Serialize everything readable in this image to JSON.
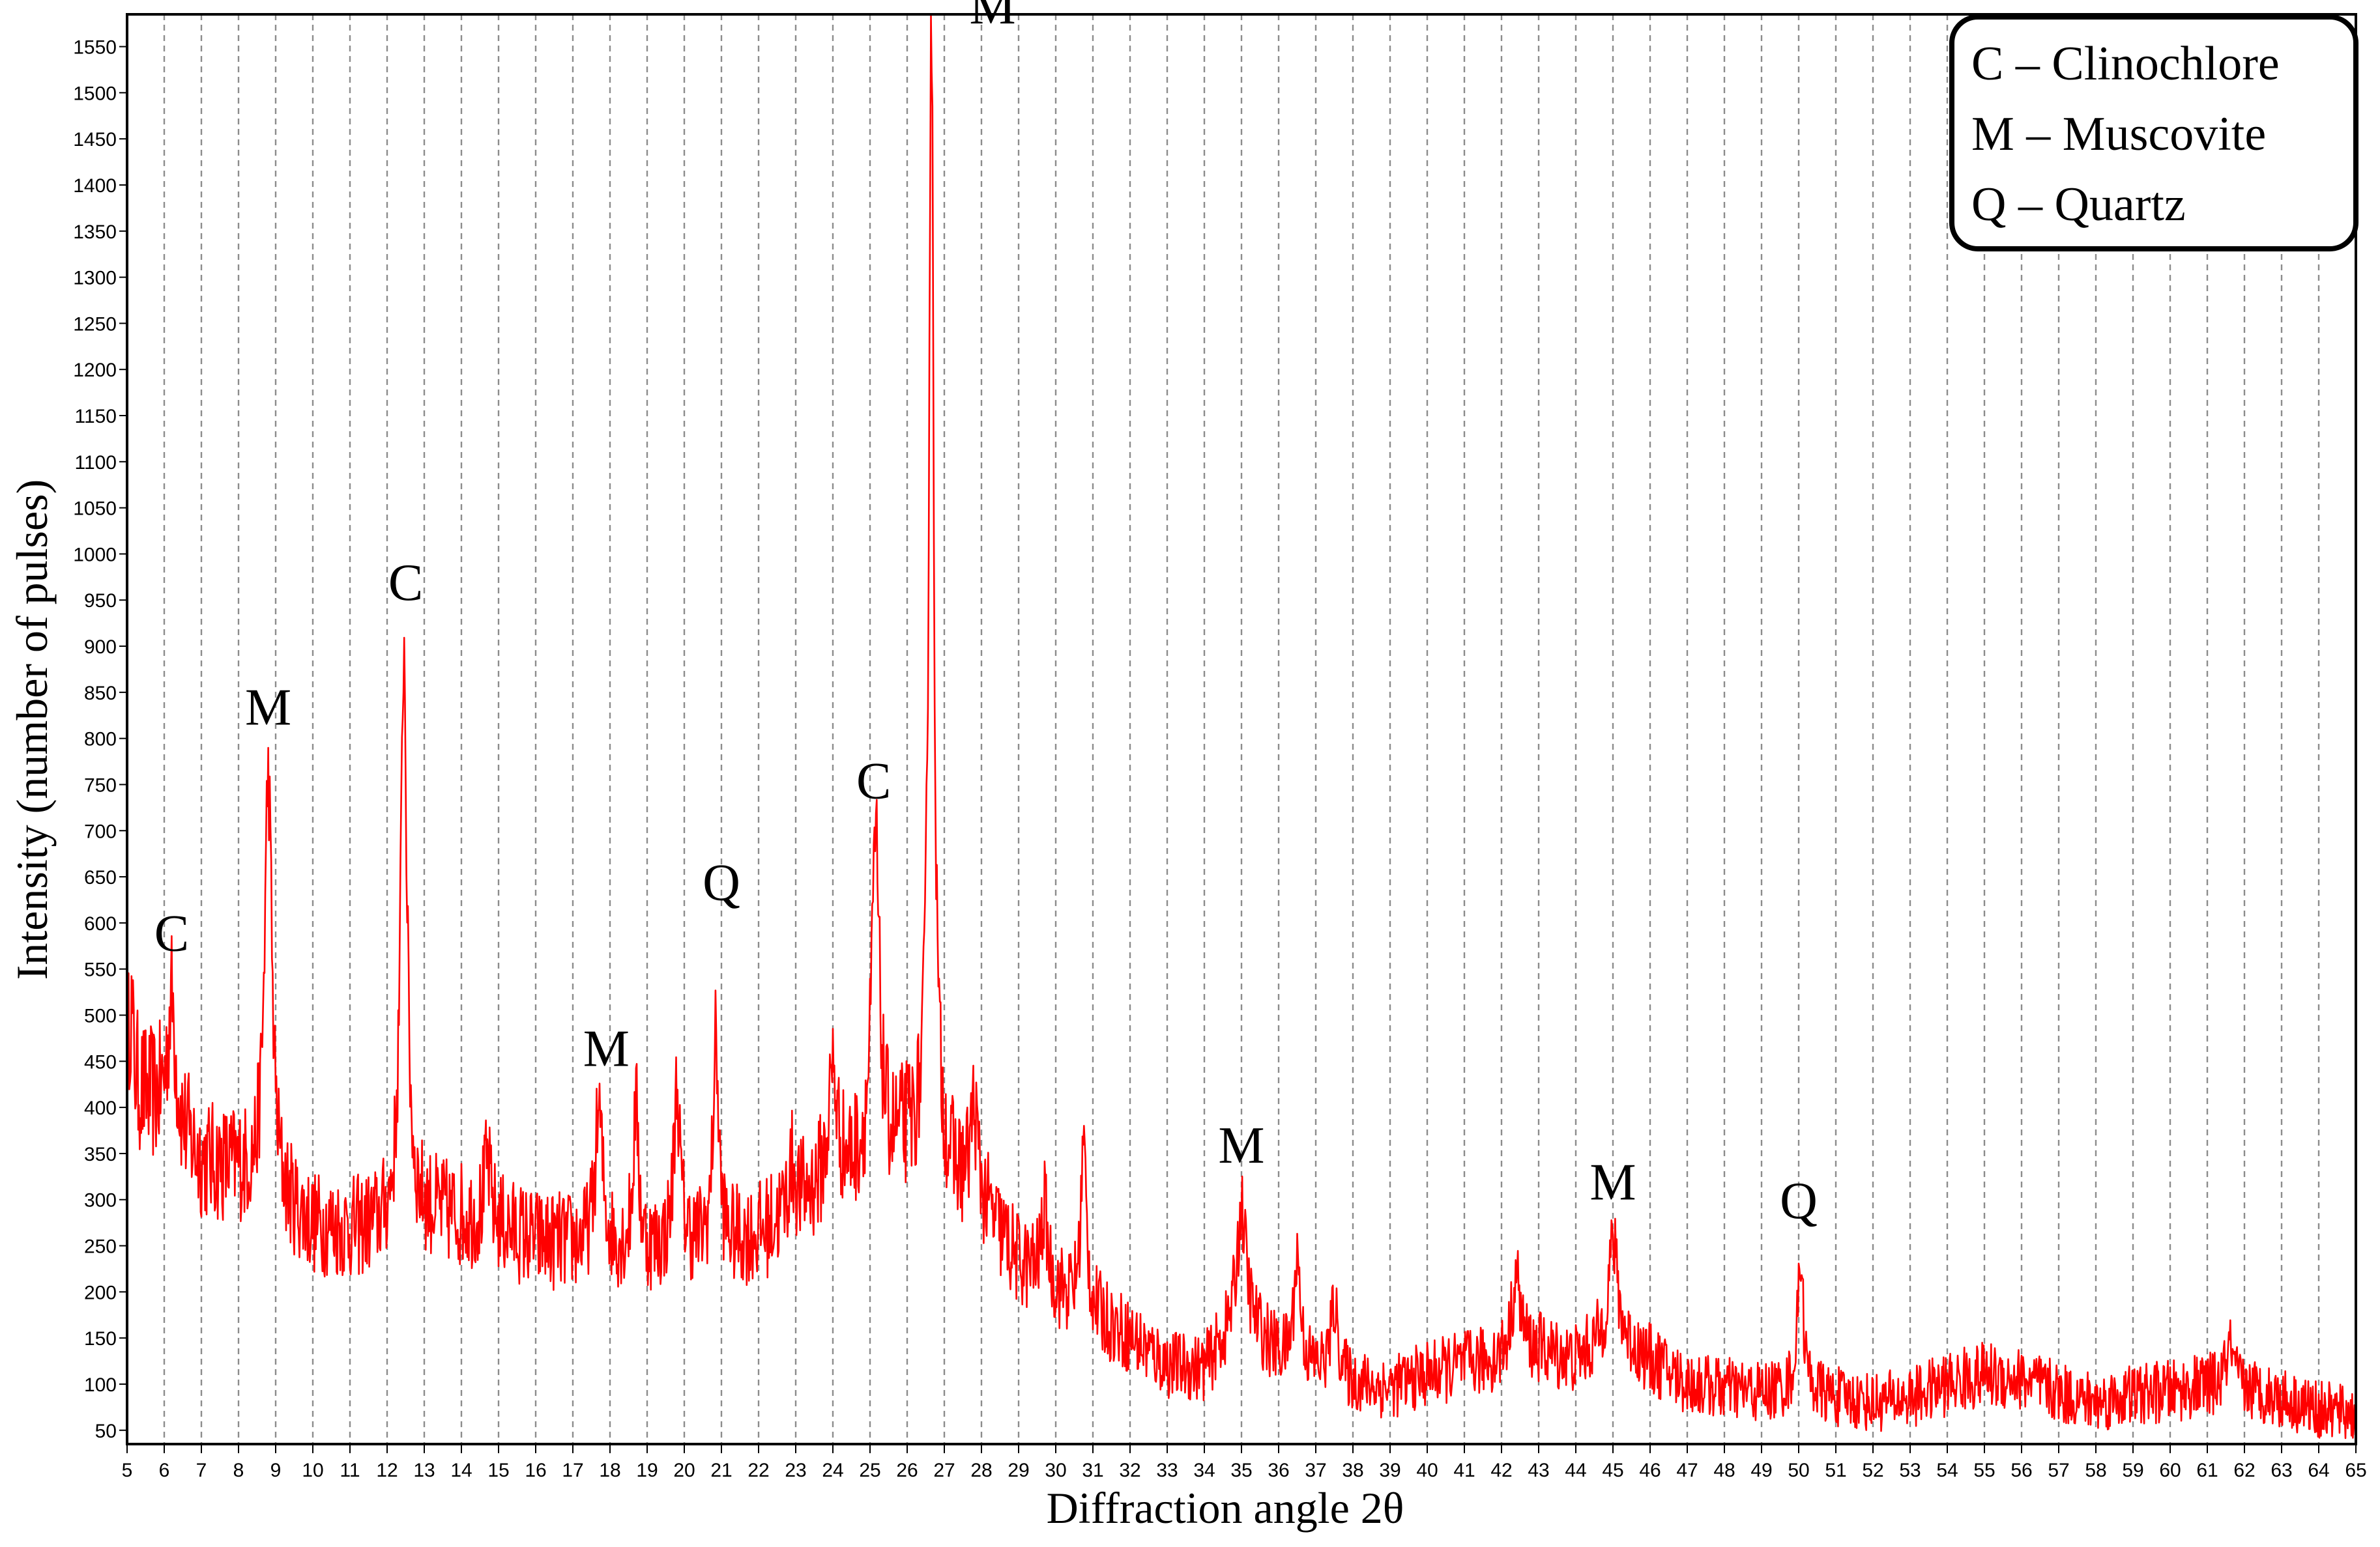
{
  "chart_data": {
    "type": "line",
    "xlabel": "Diffraction angle 2θ",
    "ylabel": "Intensity (number of pulses)",
    "xlim": [
      5,
      65
    ],
    "ylim": [
      35,
      1585
    ],
    "x_ticks": [
      5,
      6,
      7,
      8,
      9,
      10,
      11,
      12,
      13,
      14,
      15,
      16,
      17,
      18,
      19,
      20,
      21,
      22,
      23,
      24,
      25,
      26,
      27,
      28,
      29,
      30,
      31,
      32,
      33,
      34,
      35,
      36,
      37,
      38,
      39,
      40,
      41,
      42,
      43,
      44,
      45,
      46,
      47,
      48,
      49,
      50,
      51,
      52,
      53,
      54,
      55,
      56,
      57,
      58,
      59,
      60,
      61,
      62,
      63,
      64,
      65
    ],
    "y_ticks": [
      50,
      100,
      150,
      200,
      250,
      300,
      350,
      400,
      450,
      500,
      550,
      600,
      650,
      700,
      750,
      800,
      850,
      900,
      950,
      1000,
      1050,
      1100,
      1150,
      1200,
      1250,
      1300,
      1350,
      1400,
      1450,
      1500,
      1550
    ],
    "grid": "vertical dashed",
    "line_color": "#ff0000",
    "legend": {
      "position": "top-right",
      "entries": [
        "C – Clinochlore",
        "M – Muscovite",
        "Q – Quartz"
      ]
    },
    "annotations": [
      {
        "text": "C",
        "x": 6.2,
        "y": 570
      },
      {
        "text": "M",
        "x": 8.8,
        "y": 815
      },
      {
        "text": "C",
        "x": 12.5,
        "y": 950
      },
      {
        "text": "M",
        "x": 17.9,
        "y": 445
      },
      {
        "text": "Q",
        "x": 21.0,
        "y": 625
      },
      {
        "text": "C",
        "x": 25.1,
        "y": 735
      },
      {
        "text": "M",
        "x": 28.3,
        "y": 1575
      },
      {
        "text": "M",
        "x": 35.0,
        "y": 340
      },
      {
        "text": "M",
        "x": 45.0,
        "y": 300
      },
      {
        "text": "Q",
        "x": 50.0,
        "y": 280
      }
    ],
    "baseline": [
      [
        5,
        420
      ],
      [
        6,
        400
      ],
      [
        7,
        340
      ],
      [
        8,
        330
      ],
      [
        9,
        300
      ],
      [
        10,
        270
      ],
      [
        11,
        265
      ],
      [
        12,
        270
      ],
      [
        13,
        285
      ],
      [
        14,
        280
      ],
      [
        15,
        270
      ],
      [
        16,
        255
      ],
      [
        17,
        250
      ],
      [
        18,
        245
      ],
      [
        19,
        240
      ],
      [
        20,
        250
      ],
      [
        21,
        250
      ],
      [
        22,
        260
      ],
      [
        23,
        290
      ],
      [
        24,
        325
      ],
      [
        25,
        340
      ],
      [
        26,
        360
      ],
      [
        27,
        330
      ],
      [
        28,
        290
      ],
      [
        29,
        230
      ],
      [
        30,
        200
      ],
      [
        31,
        175
      ],
      [
        32,
        150
      ],
      [
        33,
        120
      ],
      [
        34,
        115
      ],
      [
        35,
        170
      ],
      [
        36,
        130
      ],
      [
        37,
        115
      ],
      [
        38,
        100
      ],
      [
        39,
        95
      ],
      [
        40,
        110
      ],
      [
        41,
        120
      ],
      [
        42,
        125
      ],
      [
        43,
        135
      ],
      [
        44,
        125
      ],
      [
        45,
        150
      ],
      [
        46,
        125
      ],
      [
        47,
        100
      ],
      [
        48,
        95
      ],
      [
        49,
        90
      ],
      [
        50,
        95
      ],
      [
        51,
        85
      ],
      [
        52,
        80
      ],
      [
        53,
        85
      ],
      [
        54,
        100
      ],
      [
        55,
        110
      ],
      [
        56,
        105
      ],
      [
        57,
        90
      ],
      [
        58,
        80
      ],
      [
        59,
        88
      ],
      [
        60,
        92
      ],
      [
        61,
        98
      ],
      [
        62,
        95
      ],
      [
        63,
        85
      ],
      [
        64,
        72
      ],
      [
        65,
        68
      ]
    ],
    "peaks": [
      {
        "x": 5.1,
        "y": 505,
        "w": 0.08
      },
      {
        "x": 6.2,
        "y": 520,
        "w": 0.12
      },
      {
        "x": 8.8,
        "y": 760,
        "w": 0.12
      },
      {
        "x": 12.45,
        "y": 900,
        "w": 0.1
      },
      {
        "x": 14.7,
        "y": 340,
        "w": 0.1
      },
      {
        "x": 17.7,
        "y": 395,
        "w": 0.12
      },
      {
        "x": 18.7,
        "y": 400,
        "w": 0.09
      },
      {
        "x": 19.8,
        "y": 420,
        "w": 0.1
      },
      {
        "x": 20.85,
        "y": 475,
        "w": 0.09
      },
      {
        "x": 22.9,
        "y": 335,
        "w": 0.12
      },
      {
        "x": 24.0,
        "y": 440,
        "w": 0.13
      },
      {
        "x": 25.15,
        "y": 690,
        "w": 0.12
      },
      {
        "x": 26.65,
        "y": 1585,
        "w": 0.08
      },
      {
        "x": 27.8,
        "y": 395,
        "w": 0.12
      },
      {
        "x": 29.7,
        "y": 290,
        "w": 0.1
      },
      {
        "x": 30.75,
        "y": 360,
        "w": 0.09
      },
      {
        "x": 35.0,
        "y": 290,
        "w": 0.15
      },
      {
        "x": 36.5,
        "y": 240,
        "w": 0.1
      },
      {
        "x": 37.5,
        "y": 185,
        "w": 0.12
      },
      {
        "x": 42.4,
        "y": 215,
        "w": 0.15
      },
      {
        "x": 45.0,
        "y": 255,
        "w": 0.15
      },
      {
        "x": 50.05,
        "y": 240,
        "w": 0.09
      },
      {
        "x": 61.6,
        "y": 140,
        "w": 0.12
      }
    ]
  }
}
